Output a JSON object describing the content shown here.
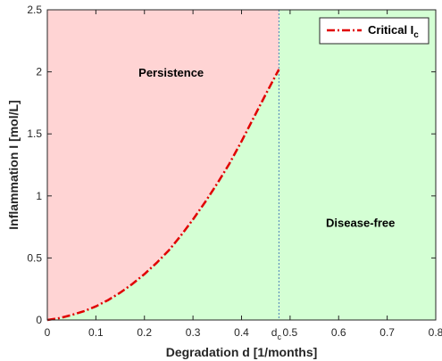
{
  "chart_data": {
    "type": "area",
    "title": "",
    "xlabel": "Degradation d [1/months]",
    "ylabel": "Inflammation I [mol/L]",
    "xlim": [
      0,
      0.8
    ],
    "ylim": [
      0,
      2.5
    ],
    "x_ticks": [
      {
        "value": 0,
        "label": "0"
      },
      {
        "value": 0.1,
        "label": "0.1"
      },
      {
        "value": 0.2,
        "label": "0.2"
      },
      {
        "value": 0.3,
        "label": "0.3"
      },
      {
        "value": 0.4,
        "label": "0.4"
      },
      {
        "value": 0.5,
        "label": "0.5"
      },
      {
        "value": 0.6,
        "label": "0.6"
      },
      {
        "value": 0.7,
        "label": "0.7"
      },
      {
        "value": 0.8,
        "label": "0.8"
      }
    ],
    "y_ticks": [
      {
        "value": 0,
        "label": "0"
      },
      {
        "value": 0.5,
        "label": "0.5"
      },
      {
        "value": 1,
        "label": "1"
      },
      {
        "value": 1.5,
        "label": "1.5"
      },
      {
        "value": 2,
        "label": "2"
      },
      {
        "value": 2.5,
        "label": "2.5"
      }
    ],
    "critical_d": {
      "value": 0.477,
      "label": "d",
      "subscript": "c"
    },
    "series": [
      {
        "name": "Critical I",
        "name_subscript": "c",
        "style": "dash-dot",
        "color": "#e00000",
        "x": [
          0,
          0.025,
          0.05,
          0.075,
          0.1,
          0.125,
          0.15,
          0.175,
          0.2,
          0.225,
          0.25,
          0.275,
          0.3,
          0.325,
          0.35,
          0.375,
          0.4,
          0.425,
          0.45,
          0.477
        ],
        "y": [
          0,
          0.015,
          0.04,
          0.07,
          0.11,
          0.16,
          0.22,
          0.29,
          0.37,
          0.46,
          0.56,
          0.68,
          0.81,
          0.95,
          1.1,
          1.26,
          1.44,
          1.63,
          1.82,
          2.02
        ]
      }
    ],
    "regions": [
      {
        "name": "Persistence",
        "color": "#ffd4d4",
        "label_at": {
          "x": 0.255,
          "y": 1.96
        }
      },
      {
        "name": "Disease-free",
        "color": "#d4ffd4",
        "label_at": {
          "x": 0.645,
          "y": 0.75
        }
      }
    ],
    "legend": {
      "position": "top-right"
    },
    "grid": false
  }
}
